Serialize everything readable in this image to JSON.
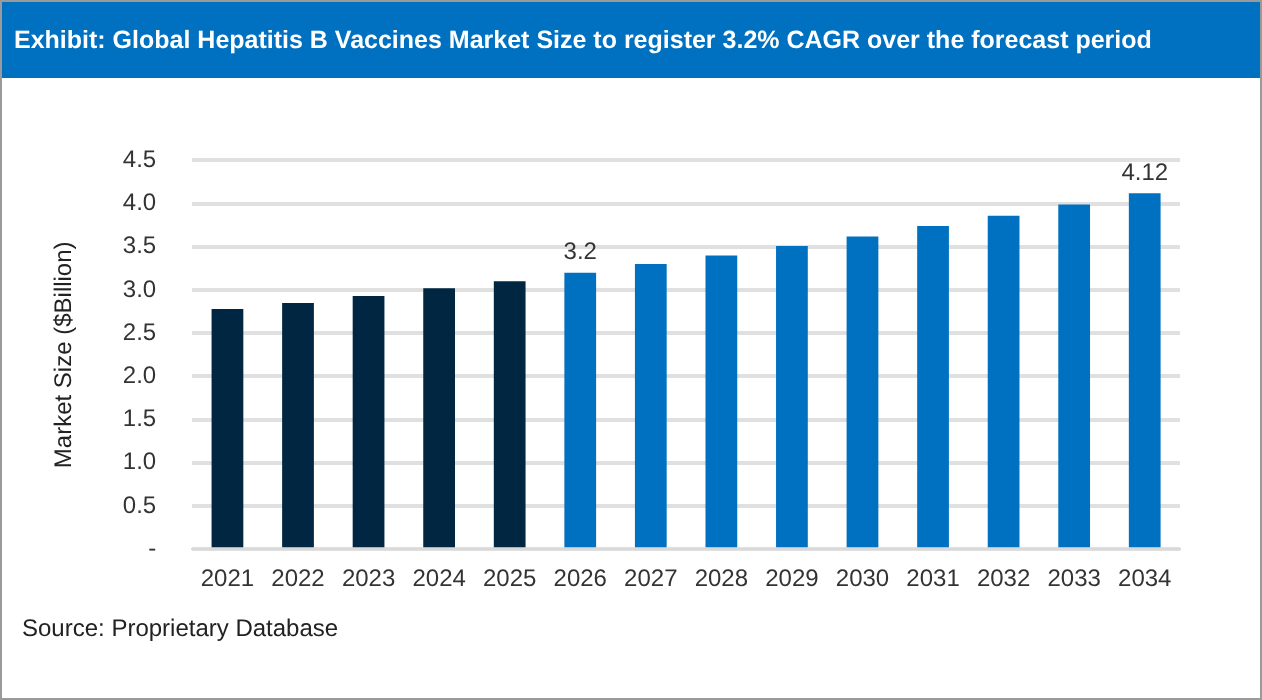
{
  "chart_data": {
    "type": "bar",
    "title": "Exhibit: Global Hepatitis B Vaccines Market Size to register 3.2% CAGR over the forecast period",
    "ylabel": "Market Size ($Billion)",
    "categories": [
      "2021",
      "2022",
      "2023",
      "2024",
      "2025",
      "2026",
      "2027",
      "2028",
      "2029",
      "2030",
      "2031",
      "2032",
      "2033",
      "2034"
    ],
    "values": [
      2.78,
      2.85,
      2.93,
      3.02,
      3.1,
      3.2,
      3.3,
      3.4,
      3.51,
      3.62,
      3.74,
      3.86,
      3.99,
      4.12
    ],
    "value_labels": [
      null,
      null,
      null,
      null,
      null,
      "3.2",
      null,
      null,
      null,
      null,
      null,
      null,
      null,
      "4.12"
    ],
    "colors": [
      "#002642",
      "#002642",
      "#002642",
      "#002642",
      "#002642",
      "#0070c0",
      "#0070c0",
      "#0070c0",
      "#0070c0",
      "#0070c0",
      "#0070c0",
      "#0070c0",
      "#0070c0",
      "#0070c0"
    ],
    "ylim": [
      0,
      4.5
    ],
    "yticks": [
      {
        "value": 0,
        "label": "-"
      },
      0.5,
      {
        "value": 1,
        "label": "1.0"
      },
      1.5,
      {
        "value": 2,
        "label": "2.0"
      },
      2.5,
      {
        "value": 3,
        "label": "3.0"
      },
      3.5,
      {
        "value": 4,
        "label": "4.0"
      },
      4.5
    ],
    "grid": "y",
    "legend": false,
    "annotations": [
      "Source: Proprietary Database"
    ]
  }
}
